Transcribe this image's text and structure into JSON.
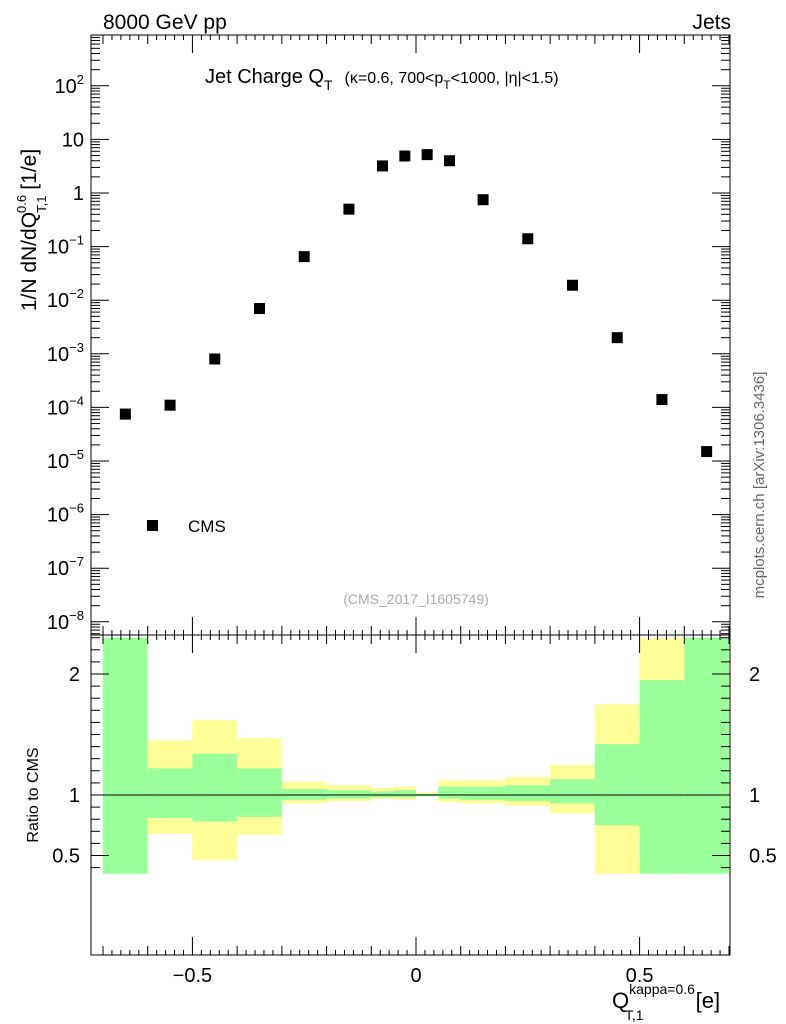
{
  "header": {
    "left": "8000 GeV pp",
    "right": "Jets"
  },
  "title": {
    "main": "Jet Charge Q",
    "main_sub": "T",
    "detail_1": "(κ=0.6, 700<p",
    "detail_sub": "T",
    "detail_2": "<1000, |η|<1.5)"
  },
  "watermark": "(CMS_2017_I1605749)",
  "side_credit": "mcplots.cern.ch [arXiv:1306.3436]",
  "main_ylabel": {
    "prefix": "1/N dN/dQ",
    "sup": "0.6",
    "sub": "T,1",
    "suffix": " [1/e]"
  },
  "ratio_ylabel": "Ratio to CMS",
  "xlabel": {
    "base": "Q",
    "sup": "kappa=0.6",
    "sub": "T,1",
    "unit": "[e]"
  },
  "legend": {
    "label": "CMS",
    "placement": "lower-left"
  },
  "colors": {
    "data_marker": "#000000",
    "band_inner": "#99ff99",
    "band_outer": "#ffff99",
    "ref_line": "#000000"
  },
  "chart_data": {
    "type": "scatter",
    "xlim": [
      -0.7,
      0.7
    ],
    "main_panel": {
      "yscale": "log",
      "ylim": [
        8e-09,
        800
      ],
      "y_ticks": [
        {
          "value": 1e-08,
          "label": "10",
          "exp": "−8"
        },
        {
          "value": 1e-07,
          "label": "10",
          "exp": "−7"
        },
        {
          "value": 1e-06,
          "label": "10",
          "exp": "−6"
        },
        {
          "value": 1e-05,
          "label": "10",
          "exp": "−5"
        },
        {
          "value": 0.0001,
          "label": "10",
          "exp": "−4"
        },
        {
          "value": 0.001,
          "label": "10",
          "exp": "−3"
        },
        {
          "value": 0.01,
          "label": "10",
          "exp": "−2"
        },
        {
          "value": 0.1,
          "label": "10",
          "exp": "−1"
        },
        {
          "value": 1,
          "label": "1",
          "exp": ""
        },
        {
          "value": 10,
          "label": "10",
          "exp": ""
        },
        {
          "value": 100,
          "label": "10",
          "exp": "2"
        }
      ],
      "series": [
        {
          "name": "CMS",
          "x": [
            -0.65,
            -0.55,
            -0.45,
            -0.35,
            -0.25,
            -0.15,
            -0.075,
            -0.025,
            0.025,
            0.075,
            0.15,
            0.25,
            0.35,
            0.45,
            0.55,
            0.65
          ],
          "y": [
            7.5e-05,
            0.00011,
            0.0008,
            0.007,
            0.065,
            0.5,
            3.2,
            4.9,
            5.2,
            4.0,
            0.75,
            0.14,
            0.019,
            0.002,
            0.00014,
            1.5e-05
          ]
        }
      ]
    },
    "ratio_panel": {
      "ylim": [
        0.35,
        2.3
      ],
      "y_ticks": [
        {
          "value": 0.5,
          "label": "0.5"
        },
        {
          "value": 1,
          "label": "1"
        },
        {
          "value": 2,
          "label": "2"
        }
      ],
      "reference": 1.0,
      "bins": [
        {
          "lo": -0.7,
          "hi": -0.6,
          "inner": [
            0.35,
            2.3
          ],
          "outer": [
            0.35,
            2.3
          ]
        },
        {
          "lo": -0.6,
          "hi": -0.5,
          "inner": [
            0.81,
            1.22
          ],
          "outer": [
            0.68,
            1.45
          ]
        },
        {
          "lo": -0.5,
          "hi": -0.4,
          "inner": [
            0.78,
            1.34
          ],
          "outer": [
            0.46,
            1.62
          ]
        },
        {
          "lo": -0.4,
          "hi": -0.3,
          "inner": [
            0.82,
            1.22
          ],
          "outer": [
            0.67,
            1.47
          ]
        },
        {
          "lo": -0.3,
          "hi": -0.2,
          "inner": [
            0.96,
            1.05
          ],
          "outer": [
            0.93,
            1.11
          ]
        },
        {
          "lo": -0.2,
          "hi": -0.1,
          "inner": [
            0.97,
            1.04
          ],
          "outer": [
            0.95,
            1.08
          ]
        },
        {
          "lo": -0.1,
          "hi": -0.05,
          "inner": [
            0.98,
            1.03
          ],
          "outer": [
            0.97,
            1.06
          ]
        },
        {
          "lo": -0.05,
          "hi": 0.0,
          "inner": [
            0.98,
            1.04
          ],
          "outer": [
            0.96,
            1.07
          ]
        },
        {
          "lo": 0.0,
          "hi": 0.05,
          "inner": [
            0.99,
            1.01
          ],
          "outer": [
            0.99,
            1.02
          ]
        },
        {
          "lo": 0.05,
          "hi": 0.1,
          "inner": [
            0.97,
            1.07
          ],
          "outer": [
            0.94,
            1.12
          ]
        },
        {
          "lo": 0.1,
          "hi": 0.2,
          "inner": [
            0.96,
            1.07
          ],
          "outer": [
            0.93,
            1.12
          ]
        },
        {
          "lo": 0.2,
          "hi": 0.3,
          "inner": [
            0.95,
            1.08
          ],
          "outer": [
            0.91,
            1.15
          ]
        },
        {
          "lo": 0.3,
          "hi": 0.4,
          "inner": [
            0.93,
            1.13
          ],
          "outer": [
            0.85,
            1.25
          ]
        },
        {
          "lo": 0.4,
          "hi": 0.5,
          "inner": [
            0.75,
            1.42
          ],
          "outer": [
            0.35,
            1.75
          ]
        },
        {
          "lo": 0.5,
          "hi": 0.6,
          "inner": [
            0.35,
            1.95
          ],
          "outer": [
            0.35,
            2.3
          ]
        },
        {
          "lo": 0.6,
          "hi": 0.7,
          "inner": [
            0.35,
            2.3
          ],
          "outer": [
            0.35,
            2.3
          ]
        }
      ]
    },
    "x_ticks": [
      {
        "value": -0.5,
        "label": "−0.5"
      },
      {
        "value": 0,
        "label": "0"
      },
      {
        "value": 0.5,
        "label": "0.5"
      }
    ]
  }
}
